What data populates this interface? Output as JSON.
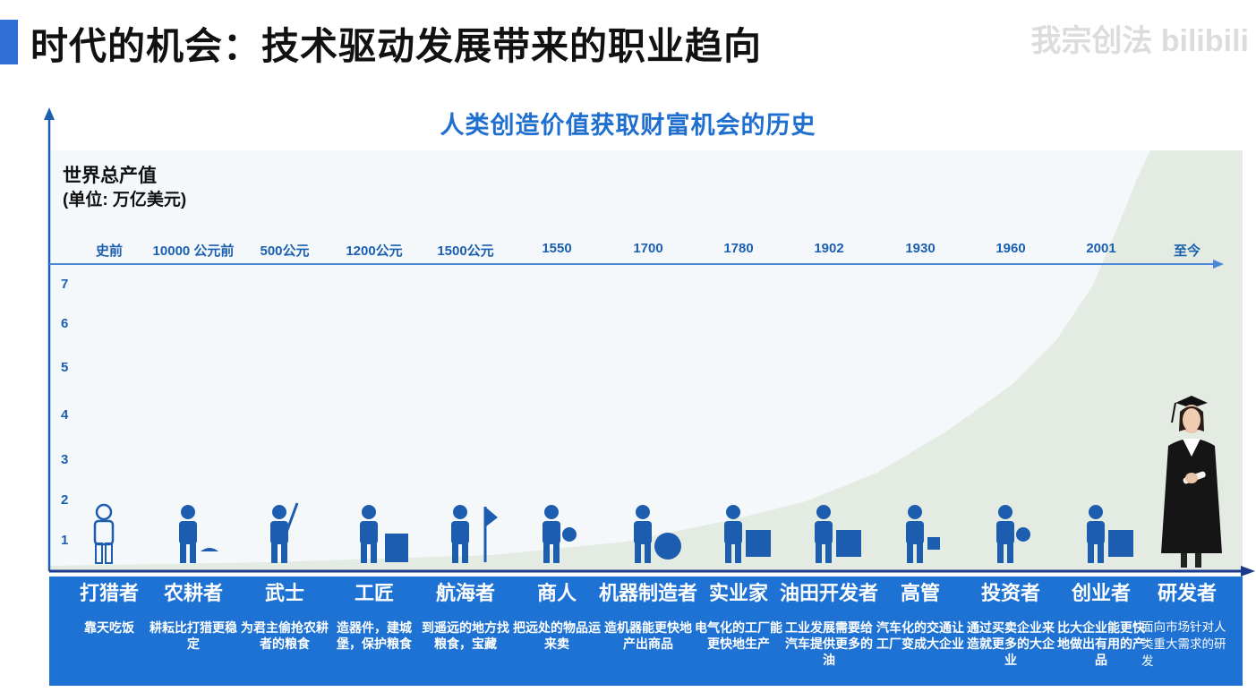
{
  "slide": {
    "title": "时代的机会：技术驱动发展带来的职业趋向",
    "watermark": "我宗创法 bilibili"
  },
  "chart_data": {
    "type": "area",
    "title": "人类创造价值获取财富机会的历史",
    "ylabel": "世界总产值",
    "yunit": "(单位: 万亿美元)",
    "y_ticks": [
      "1",
      "2",
      "3",
      "4",
      "5",
      "6",
      "7"
    ],
    "x_eras": [
      "史前",
      "10000 公元前",
      "500公元",
      "1200公元",
      "1500公元",
      "1550",
      "1700",
      "1780",
      "1902",
      "1930",
      "1960",
      "2001",
      "至今"
    ],
    "grid": false,
    "legend": "none"
  },
  "roles": [
    {
      "name": "打猎者",
      "desc": "靠天吃饭",
      "icon": "hunter-icon"
    },
    {
      "name": "农耕者",
      "desc": "耕耘比打猎更稳定",
      "icon": "farmer-icon"
    },
    {
      "name": "武士",
      "desc": "为君主偷抢农耕者的粮食",
      "icon": "warrior-icon"
    },
    {
      "name": "工匠",
      "desc": "造器件，建城堡，保护粮食",
      "icon": "craftsman-icon"
    },
    {
      "name": "航海者",
      "desc": "到遥远的地方找粮食，宝藏",
      "icon": "navigator-icon"
    },
    {
      "name": "商人",
      "desc": "把远处的物品运来卖",
      "icon": "merchant-icon"
    },
    {
      "name": "机器制造者",
      "desc": "造机器能更快地产出商品",
      "icon": "machine-maker-icon"
    },
    {
      "name": "实业家",
      "desc": "电气化的工厂能更快地生产",
      "icon": "industrialist-icon"
    },
    {
      "name": "油田开发者",
      "desc": "工业发展需要给汽车提供更多的油",
      "icon": "oil-developer-icon"
    },
    {
      "name": "高管",
      "desc": "汽车化的交通让工厂变成大企业",
      "icon": "executive-icon"
    },
    {
      "name": "投资者",
      "desc": "通过买卖企业来造就更多的大企业",
      "icon": "investor-icon"
    },
    {
      "name": "创业者",
      "desc": "比大企业能更快地做出有用的产品",
      "icon": "entrepreneur-icon"
    },
    {
      "name": "研发者",
      "desc": "面向市场针对人类重大需求的研发",
      "icon": "researcher-photo"
    }
  ],
  "colors": {
    "accent": "#2f6fd6",
    "band": "#1d72d4",
    "axis": "#1b5fb0",
    "curve_fill": "#e3ebe2",
    "title_blue": "#1f6fd1"
  }
}
